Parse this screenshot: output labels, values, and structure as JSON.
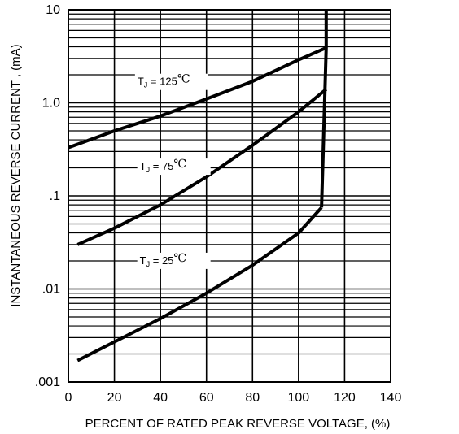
{
  "chart_data": {
    "type": "line",
    "title": "",
    "xlabel": "PERCENT OF RATED PEAK REVERSE VOLTAGE, (%)",
    "ylabel": "INSTANTANEOUS REVERSE CURRENT , (mA)",
    "xlim": [
      0,
      140
    ],
    "ylim": [
      0.001,
      10
    ],
    "y_scale": "log",
    "grid": true,
    "x_ticks": [
      {
        "value": 0,
        "label": "0"
      },
      {
        "value": 20,
        "label": "20"
      },
      {
        "value": 40,
        "label": "40"
      },
      {
        "value": 60,
        "label": "60"
      },
      {
        "value": 80,
        "label": "80"
      },
      {
        "value": 100,
        "label": "100"
      },
      {
        "value": 120,
        "label": "120"
      },
      {
        "value": 140,
        "label": "140"
      }
    ],
    "y_ticks": [
      {
        "value": 10,
        "label": "10"
      },
      {
        "value": 1,
        "label": "1.0"
      },
      {
        "value": 0.1,
        "label": ".1"
      },
      {
        "value": 0.01,
        "label": ".01"
      },
      {
        "value": 0.001,
        "label": ".001"
      }
    ],
    "series": [
      {
        "x": [
          0,
          20,
          40,
          60,
          80,
          100,
          112
        ],
        "y": [
          0.33,
          0.5,
          0.72,
          1.1,
          1.7,
          2.9,
          3.9
        ]
      },
      {
        "x": [
          4,
          20,
          40,
          60,
          80,
          100,
          112
        ],
        "y": [
          0.03,
          0.045,
          0.08,
          0.16,
          0.35,
          0.8,
          1.4
        ]
      },
      {
        "x": [
          4,
          20,
          40,
          60,
          80,
          100,
          110
        ],
        "y": [
          0.0017,
          0.0027,
          0.0048,
          0.009,
          0.018,
          0.04,
          0.075
        ]
      },
      {
        "x": [
          110,
          112,
          112
        ],
        "y": [
          0.075,
          3.9,
          10
        ]
      }
    ],
    "annotations": [
      {
        "main": "T",
        "sub": "J",
        "rest": " = 125",
        "unit": "℃",
        "x": 30,
        "y": 1.55
      },
      {
        "main": "T",
        "sub": "J",
        "rest": " = 75",
        "unit": "℃",
        "x": 31,
        "y": 0.19
      },
      {
        "main": "T",
        "sub": "J",
        "rest": " = 25",
        "unit": "℃",
        "x": 31,
        "y": 0.0185
      }
    ]
  }
}
